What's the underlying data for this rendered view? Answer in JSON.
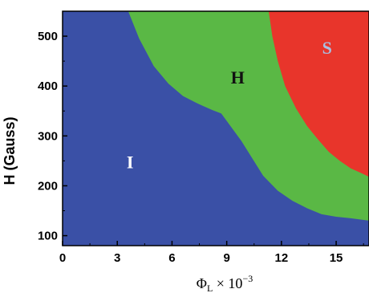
{
  "chart_data": {
    "type": "area",
    "xlabel": "Φ",
    "xlabel_sub": "L",
    "xlabel_suffix": " × 10",
    "xlabel_exp": "−3",
    "ylabel": "H (Gauss)",
    "xlim": [
      0,
      16.8
    ],
    "ylim": [
      80,
      550
    ],
    "xticks": [
      0,
      3,
      6,
      9,
      12,
      15
    ],
    "yticks": [
      100,
      200,
      300,
      400,
      500
    ],
    "grid": false,
    "regions": [
      {
        "name": "I",
        "label": "I",
        "color": "#3a50a6",
        "label_color": "#ffffff",
        "label_at": [
          3.7,
          235
        ]
      },
      {
        "name": "H",
        "label": "H",
        "color": "#5ab845",
        "label_color": "#111111",
        "label_at": [
          9.6,
          405
        ]
      },
      {
        "name": "S",
        "label": "S",
        "color": "#e8352b",
        "label_color": "#a9bfe2",
        "label_at": [
          14.5,
          465
        ]
      }
    ],
    "boundary_IH": {
      "x": [
        3.6,
        4.2,
        5.0,
        5.8,
        6.6,
        7.4,
        8.2,
        8.7,
        9.2,
        9.8,
        10.4,
        11.0,
        11.8,
        12.6,
        13.4,
        14.2,
        15.0,
        15.8,
        16.8
      ],
      "y": [
        550,
        495,
        440,
        405,
        380,
        365,
        352,
        345,
        320,
        290,
        255,
        220,
        190,
        170,
        155,
        143,
        138,
        135,
        130
      ]
    },
    "boundary_HS": {
      "x": [
        11.3,
        11.5,
        11.8,
        12.2,
        12.8,
        13.4,
        14.0,
        14.6,
        15.2,
        15.8,
        16.4,
        16.8
      ],
      "y": [
        550,
        500,
        450,
        400,
        355,
        320,
        293,
        268,
        250,
        235,
        225,
        218
      ]
    }
  }
}
